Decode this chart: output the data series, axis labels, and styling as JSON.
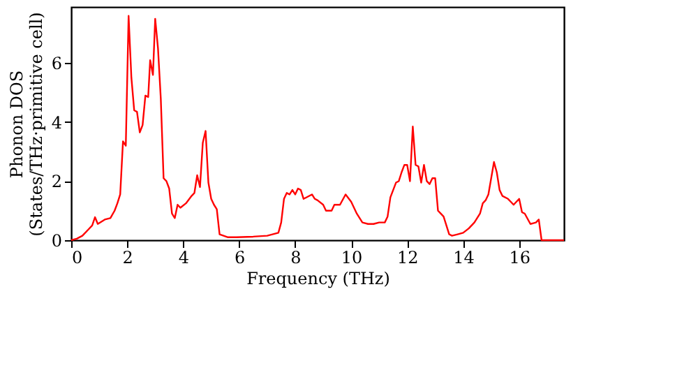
{
  "chart_data": {
    "type": "line",
    "xlabel": "Frequency (THz)",
    "ylabel": "Phonon DOS\n(States/THz·primitive cell)",
    "xlim": [
      0,
      17.6
    ],
    "ylim": [
      0,
      7.9
    ],
    "xticks": [
      0,
      2,
      4,
      6,
      8,
      10,
      12,
      14,
      16
    ],
    "yticks": [
      0,
      2,
      4,
      6
    ],
    "grid": false,
    "legend": false,
    "x": [
      0,
      0.2,
      0.4,
      0.6,
      0.75,
      0.85,
      0.95,
      1.2,
      1.4,
      1.55,
      1.65,
      1.75,
      1.85,
      1.95,
      2.05,
      2.15,
      2.25,
      2.35,
      2.45,
      2.55,
      2.65,
      2.75,
      2.82,
      2.92,
      3.0,
      3.1,
      3.2,
      3.3,
      3.4,
      3.5,
      3.6,
      3.7,
      3.8,
      3.9,
      4.1,
      4.3,
      4.4,
      4.5,
      4.6,
      4.7,
      4.8,
      4.9,
      5.0,
      5.1,
      5.2,
      5.3,
      5.6,
      5.9,
      6.5,
      7.0,
      7.4,
      7.5,
      7.6,
      7.7,
      7.8,
      7.9,
      8.0,
      8.1,
      8.2,
      8.3,
      8.4,
      8.6,
      8.7,
      8.8,
      9.0,
      9.1,
      9.3,
      9.4,
      9.6,
      9.8,
      10.0,
      10.2,
      10.4,
      10.6,
      10.8,
      11.0,
      11.2,
      11.3,
      11.4,
      11.5,
      11.6,
      11.7,
      11.8,
      11.9,
      12.0,
      12.1,
      12.2,
      12.3,
      12.4,
      12.5,
      12.6,
      12.7,
      12.8,
      12.9,
      13.0,
      13.1,
      13.2,
      13.3,
      13.5,
      13.6,
      13.8,
      14.0,
      14.2,
      14.4,
      14.6,
      14.7,
      14.8,
      14.9,
      15.0,
      15.1,
      15.2,
      15.3,
      15.4,
      15.6,
      15.7,
      15.8,
      15.9,
      16.0,
      16.1,
      16.2,
      16.4,
      16.6,
      16.7,
      16.8,
      17.6
    ],
    "series": [
      {
        "color": "#ff0000",
        "values": [
          0,
          0.05,
          0.15,
          0.35,
          0.5,
          0.78,
          0.55,
          0.7,
          0.75,
          1.0,
          1.25,
          1.55,
          3.35,
          3.2,
          7.6,
          5.5,
          4.4,
          4.35,
          3.65,
          3.9,
          4.9,
          4.85,
          6.1,
          5.6,
          7.5,
          6.5,
          4.8,
          2.1,
          2.0,
          1.75,
          0.9,
          0.75,
          1.2,
          1.1,
          1.25,
          1.5,
          1.6,
          2.2,
          1.8,
          3.3,
          3.7,
          1.95,
          1.4,
          1.2,
          1.05,
          0.2,
          0.1,
          0.1,
          0.12,
          0.15,
          0.25,
          0.6,
          1.4,
          1.6,
          1.55,
          1.7,
          1.55,
          1.75,
          1.7,
          1.4,
          1.45,
          1.55,
          1.4,
          1.35,
          1.2,
          1.0,
          1.0,
          1.2,
          1.2,
          1.55,
          1.3,
          0.9,
          0.6,
          0.55,
          0.55,
          0.6,
          0.6,
          0.8,
          1.45,
          1.7,
          1.95,
          2.0,
          2.3,
          2.55,
          2.55,
          2.0,
          3.85,
          2.55,
          2.5,
          1.95,
          2.55,
          2.0,
          1.9,
          2.1,
          2.1,
          1.0,
          0.9,
          0.8,
          0.2,
          0.15,
          0.2,
          0.25,
          0.4,
          0.6,
          0.9,
          1.25,
          1.35,
          1.55,
          2.1,
          2.65,
          2.3,
          1.7,
          1.5,
          1.4,
          1.3,
          1.2,
          1.3,
          1.4,
          0.95,
          0.9,
          0.55,
          0.6,
          0.7,
          0,
          0
        ]
      }
    ]
  }
}
